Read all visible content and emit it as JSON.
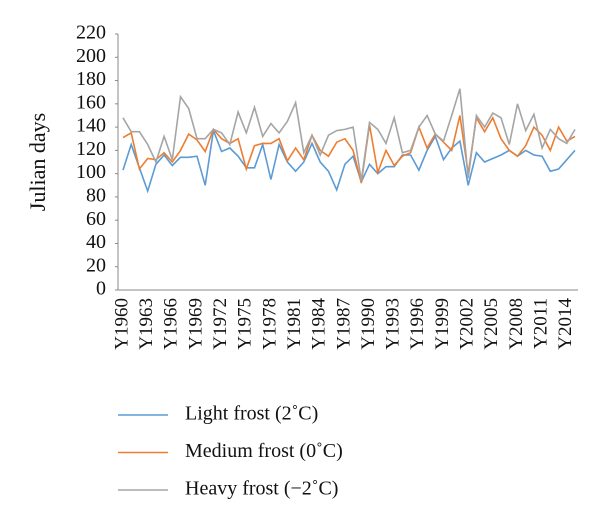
{
  "chart_data": {
    "type": "line",
    "y_label": "Julian days",
    "categories": [
      "Y1960",
      null,
      null,
      "Y1963",
      null,
      null,
      "Y1966",
      null,
      null,
      "Y1969",
      null,
      null,
      "Y1972",
      null,
      null,
      "Y1975",
      null,
      null,
      "Y1978",
      null,
      null,
      "Y1981",
      null,
      null,
      "Y1984",
      null,
      null,
      "Y1987",
      null,
      null,
      "Y1990",
      null,
      null,
      "Y1993",
      null,
      null,
      "Y1996",
      null,
      null,
      "Y1999",
      null,
      null,
      "Y2002",
      null,
      null,
      "Y2005",
      null,
      null,
      "Y2008",
      null,
      null,
      "Y2011",
      null,
      null,
      "Y2014",
      null
    ],
    "series": [
      {
        "name": "Light frost (2˚C)",
        "color": "#5b9bd5",
        "values": [
          103,
          125,
          105,
          85,
          108,
          116,
          107,
          114,
          114,
          115,
          90,
          137,
          119,
          122,
          115,
          105,
          105,
          125,
          95,
          125,
          110,
          102,
          110,
          126,
          110,
          102,
          86,
          108,
          115,
          93,
          108,
          100,
          106,
          106,
          116,
          116,
          103,
          120,
          132,
          112,
          122,
          128,
          90,
          118,
          110,
          113,
          116,
          120,
          115,
          120,
          116,
          115,
          102,
          104,
          112,
          120
        ]
      },
      {
        "name": "Medium frost (0˚C)",
        "color": "#ed7d31",
        "values": [
          131,
          135,
          104,
          113,
          112,
          118,
          110,
          120,
          134,
          129,
          119,
          138,
          130,
          126,
          130,
          104,
          124,
          126,
          126,
          130,
          111,
          122,
          112,
          133,
          120,
          115,
          127,
          130,
          120,
          92,
          142,
          101,
          120,
          107,
          115,
          118,
          140,
          122,
          134,
          127,
          120,
          150,
          100,
          148,
          136,
          148,
          130,
          120,
          115,
          124,
          140,
          133,
          120,
          140,
          128,
          132
        ]
      },
      {
        "name": "Heavy frost (−2˚C)",
        "color": "#a5a5a5",
        "values": [
          148,
          136,
          136,
          125,
          110,
          132,
          112,
          166,
          156,
          130,
          130,
          138,
          135,
          125,
          153,
          135,
          157,
          132,
          143,
          135,
          145,
          161,
          118,
          133,
          116,
          133,
          137,
          138,
          140,
          94,
          144,
          138,
          126,
          148,
          118,
          120,
          140,
          150,
          134,
          128,
          150,
          173,
          96,
          150,
          140,
          152,
          148,
          125,
          160,
          137,
          151,
          122,
          138,
          130,
          126,
          138
        ]
      }
    ],
    "ylim": [
      0,
      220
    ],
    "yticks": [
      0,
      20,
      40,
      60,
      80,
      100,
      120,
      140,
      160,
      180,
      200,
      220
    ],
    "legend": "bottom"
  }
}
